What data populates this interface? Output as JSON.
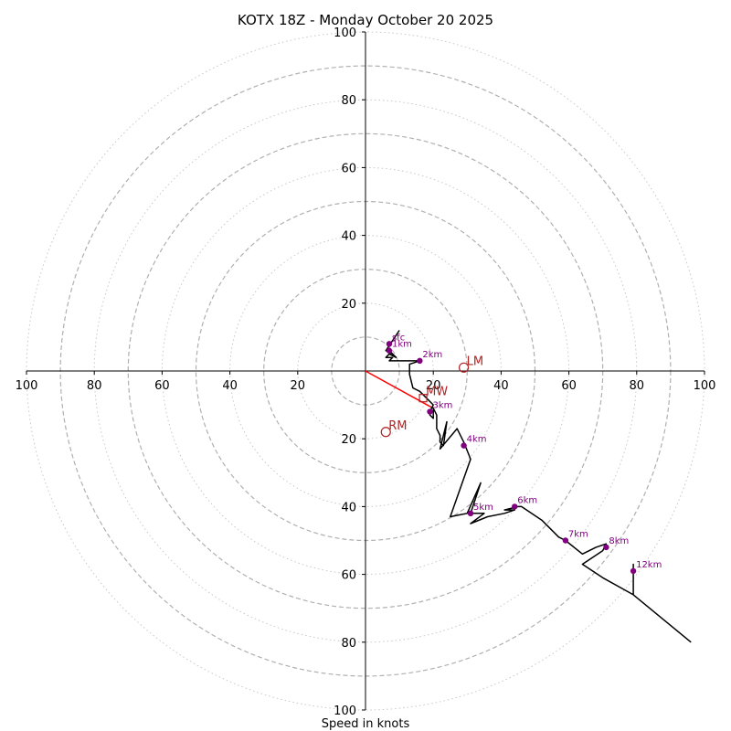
{
  "chart_data": {
    "type": "hodograph",
    "title": "KOTX 18Z - Monday October 20 2025",
    "xlabel": "Speed in knots",
    "units": "knots",
    "axis_range": [
      -100,
      100
    ],
    "rings_dashed": [
      10,
      30,
      50,
      70,
      90
    ],
    "rings_dotted": [
      20,
      40,
      60,
      80,
      100
    ],
    "x_tick_values": [
      -100,
      -80,
      -60,
      -40,
      -20,
      20,
      40,
      60,
      80,
      100
    ],
    "x_tick_labels": [
      "100",
      "80",
      "60",
      "40",
      "20",
      "20",
      "40",
      "60",
      "80",
      "100"
    ],
    "y_tick_values": [
      100,
      80,
      60,
      40,
      20,
      -20,
      -40,
      -60,
      -80,
      -100
    ],
    "y_tick_labels": [
      "100",
      "80",
      "60",
      "40",
      "20",
      "20",
      "40",
      "60",
      "80",
      "100"
    ],
    "colors": {
      "profile": "#000000",
      "markers": "#800080",
      "storm_motion": "#b22222",
      "shear_vector": "#ff0000",
      "rings": "#b0b0b0",
      "axes": "#000000"
    },
    "wind_profile": [
      [
        10,
        12
      ],
      [
        6,
        6
      ],
      [
        8,
        5
      ],
      [
        7,
        6
      ],
      [
        9,
        4
      ],
      [
        7,
        5
      ],
      [
        6,
        4
      ],
      [
        8,
        4
      ],
      [
        7,
        3
      ],
      [
        16,
        3
      ],
      [
        13,
        2
      ],
      [
        13,
        -1
      ],
      [
        14,
        -5
      ],
      [
        16,
        -6
      ],
      [
        18,
        -8
      ],
      [
        20,
        -10
      ],
      [
        19,
        -12
      ],
      [
        19,
        -13
      ],
      [
        20,
        -14
      ],
      [
        20,
        -11
      ],
      [
        21,
        -13
      ],
      [
        21,
        -17
      ],
      [
        22,
        -19
      ],
      [
        22,
        -21
      ],
      [
        23,
        -22
      ],
      [
        24,
        -15
      ],
      [
        22,
        -23
      ],
      [
        27,
        -17
      ],
      [
        29,
        -21
      ],
      [
        31,
        -26
      ],
      [
        25,
        -43
      ],
      [
        30,
        -42
      ],
      [
        34,
        -33
      ],
      [
        31,
        -42
      ],
      [
        35,
        -42
      ],
      [
        31,
        -45
      ],
      [
        36,
        -43
      ],
      [
        41,
        -42
      ],
      [
        44,
        -41
      ],
      [
        41,
        -41
      ],
      [
        45,
        -40
      ],
      [
        46,
        -40
      ],
      [
        52,
        -44
      ],
      [
        57,
        -49
      ],
      [
        59,
        -50
      ],
      [
        64,
        -54
      ],
      [
        68,
        -52
      ],
      [
        71,
        -51
      ],
      [
        70,
        -53
      ],
      [
        64,
        -57
      ],
      [
        70,
        -61
      ],
      [
        79,
        -66
      ],
      [
        79,
        -57
      ],
      [
        79,
        -66
      ],
      [
        96,
        -80
      ]
    ],
    "height_markers": [
      {
        "label": "sfc",
        "u": 7,
        "v": 8
      },
      {
        "label": "1km",
        "u": 7,
        "v": 6
      },
      {
        "label": "2km",
        "u": 16,
        "v": 3
      },
      {
        "label": "3km",
        "u": 19,
        "v": -12
      },
      {
        "label": "4km",
        "u": 29,
        "v": -22
      },
      {
        "label": "5km",
        "u": 31,
        "v": -42
      },
      {
        "label": "6km",
        "u": 44,
        "v": -40
      },
      {
        "label": "7km",
        "u": 59,
        "v": -50
      },
      {
        "label": "8km",
        "u": 71,
        "v": -52
      },
      {
        "label": "12km",
        "u": 79,
        "v": -59
      }
    ],
    "storm_motions": [
      {
        "label": "LM",
        "u": 29,
        "v": 1
      },
      {
        "label": "RM",
        "u": 6,
        "v": -18
      }
    ],
    "mean_wind": {
      "label": "MW",
      "u": 17,
      "v": -8
    },
    "shear_vector": {
      "from": [
        0,
        0
      ],
      "to": [
        20,
        -11
      ]
    }
  }
}
